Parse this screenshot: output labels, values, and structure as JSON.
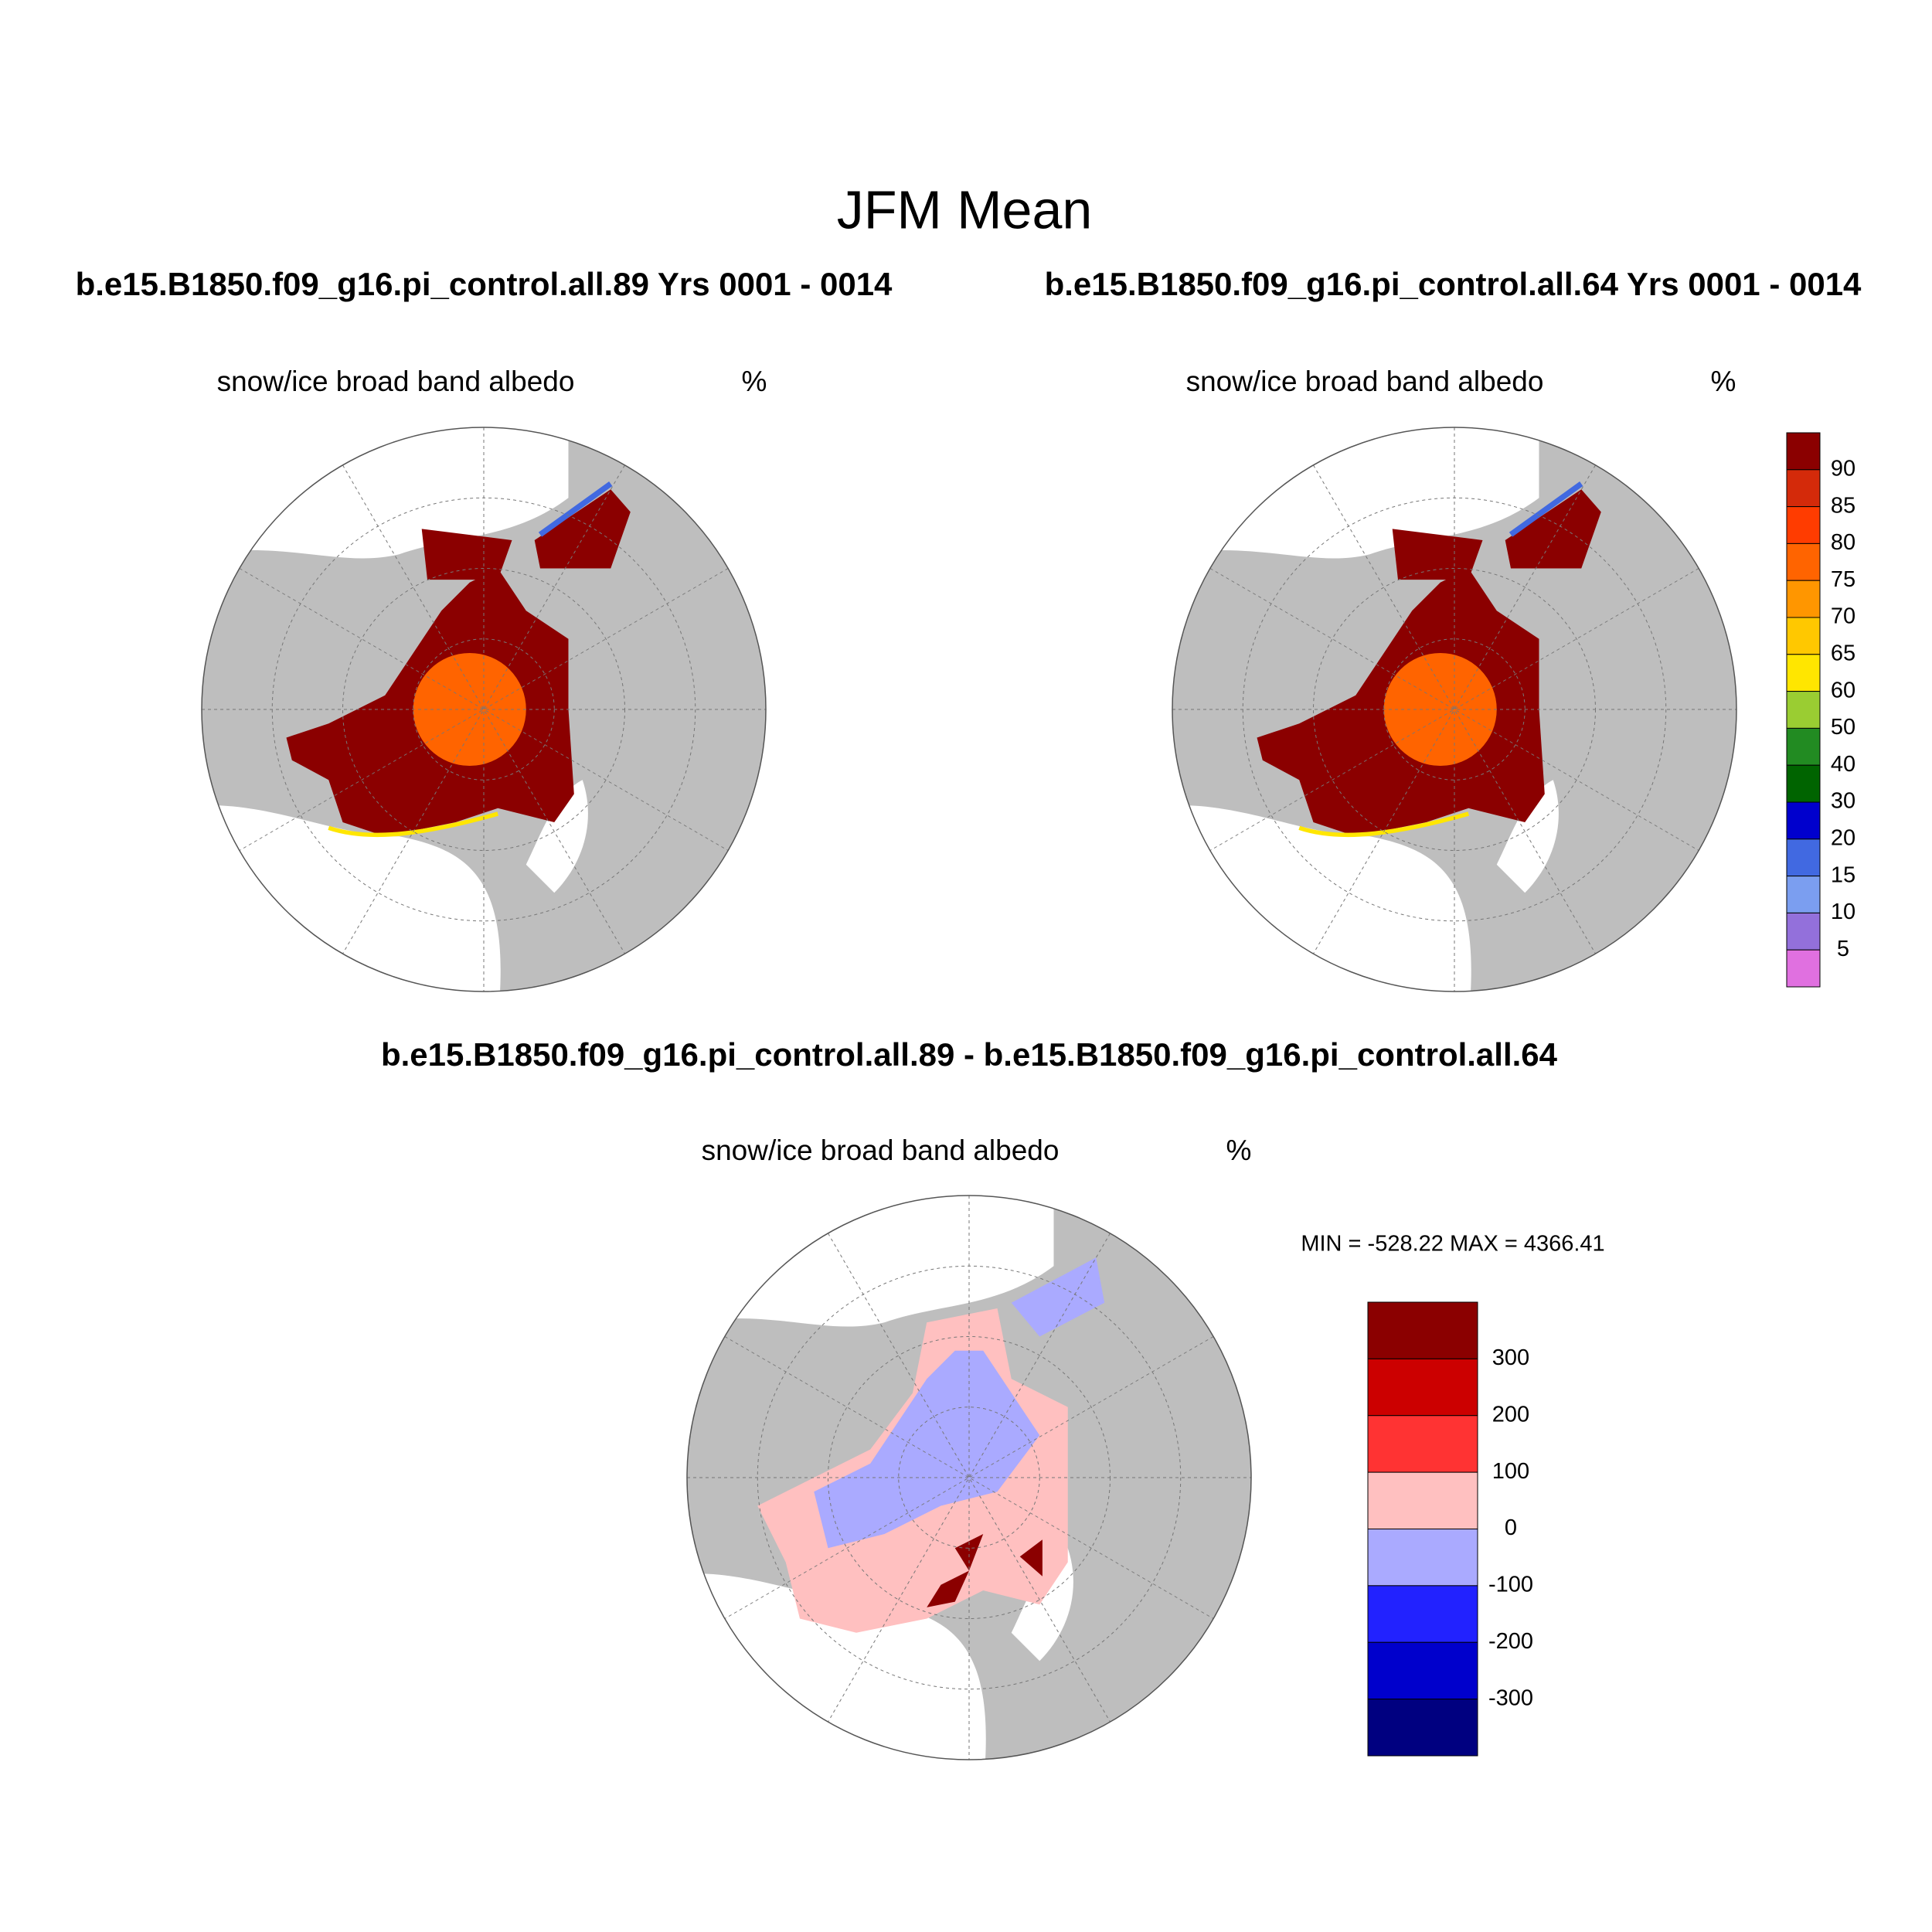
{
  "title": "JFM Mean",
  "panels": [
    {
      "case_title": "b.e15.B1850.f09_g16.pi_control.all.89  Yrs 0001 - 0014",
      "variable": "snow/ice broad band albedo",
      "units": "%"
    },
    {
      "case_title": "b.e15.B1850.f09_g16.pi_control.all.64  Yrs 0001 - 0014",
      "variable": "snow/ice broad band albedo",
      "units": "%"
    }
  ],
  "colorbar": {
    "colors": [
      "#8b0000",
      "#d42a0a",
      "#ff3c00",
      "#ff6400",
      "#ff9600",
      "#ffc800",
      "#ffe600",
      "#9acd32",
      "#228b22",
      "#006400",
      "#0000cd",
      "#4169e1",
      "#7b9ef0",
      "#9370db",
      "#e070e0"
    ],
    "labels": [
      90,
      85,
      80,
      75,
      70,
      65,
      60,
      50,
      40,
      30,
      20,
      15,
      10,
      5
    ]
  },
  "difference": {
    "title": "b.e15.B1850.f09_g16.pi_control.all.89 - b.e15.B1850.f09_g16.pi_control.all.64",
    "variable": "snow/ice broad band albedo",
    "units": "%",
    "min_max": "MIN = -528.22 MAX = 4366.41",
    "colorbar": {
      "colors": [
        "#8b0000",
        "#cc0000",
        "#ff3333",
        "#ffc0c0",
        "#aaaaff",
        "#2222ff",
        "#0000cc",
        "#000080"
      ],
      "labels": [
        300,
        200,
        100,
        0,
        -100,
        -200,
        -300
      ]
    }
  }
}
